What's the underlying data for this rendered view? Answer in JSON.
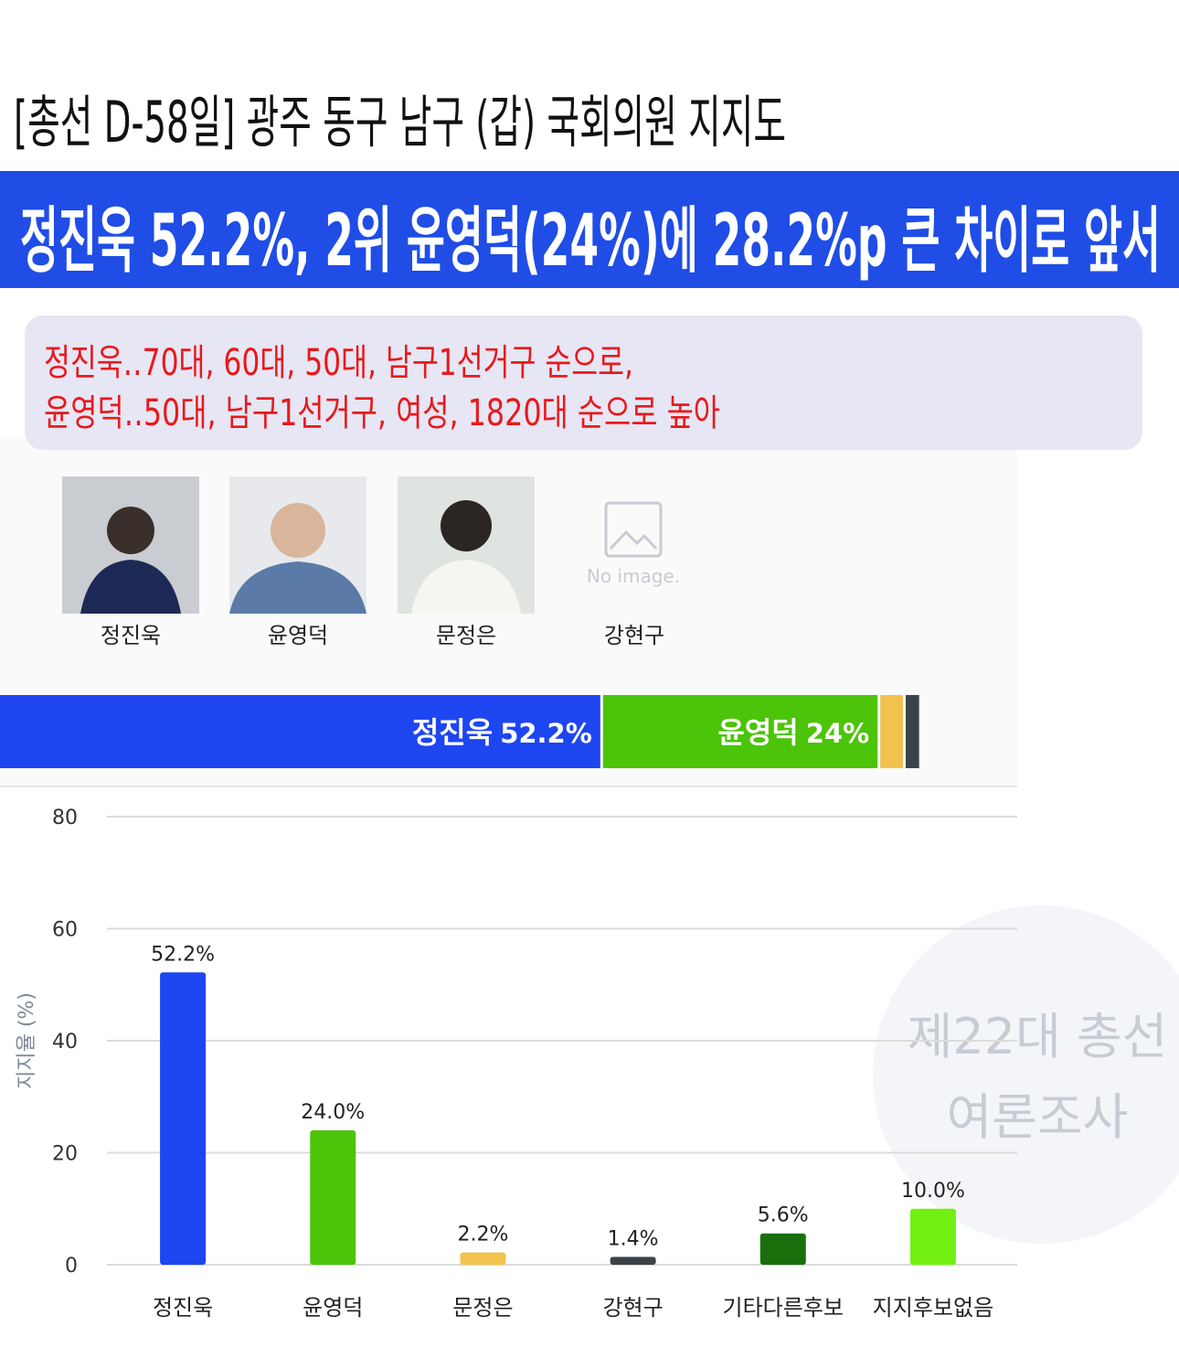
{
  "header": {
    "title": "[총선 D-58일] 광주 동구 남구 (갑) 국회의원 지지도",
    "headline": "정진욱 52.2%, 2위 윤영덕(24%)에 28.2%p 큰 차이로 앞서"
  },
  "summary": {
    "lines": [
      "정진욱‥70대, 60대, 50대, 남구1선거구 순으로,",
      "윤영덕‥50대, 남구1선거구, 여성, 1820대 순으로 높아"
    ]
  },
  "candidates": [
    "정진욱",
    "윤영덕",
    "문정은",
    "강현구"
  ],
  "no_image": "No image.",
  "stacked_bar": {
    "segments": [
      {
        "name": "정진욱",
        "value": 52.2,
        "value_label": "52.2%",
        "color": "#1e46f0"
      },
      {
        "name": "윤영덕",
        "value": 24,
        "value_label": "24%",
        "color": "#4cc40a"
      },
      {
        "value": 2.2,
        "color": "#f2c14e"
      },
      {
        "value": 1.4,
        "color": "#3b4348"
      }
    ]
  },
  "chart_data": {
    "type": "bar",
    "y_label": "지지율 (%)",
    "categories": [
      "정진욱",
      "윤영덕",
      "문정은",
      "강현구",
      "기타다른후보",
      "지지후보없음"
    ],
    "values": [
      52.2,
      24.0,
      2.2,
      1.4,
      5.6,
      10.0
    ],
    "value_labels": [
      "52.2%",
      "24.0%",
      "2.2%",
      "1.4%",
      "5.6%",
      "10.0%"
    ],
    "colors": [
      "#1e46f0",
      "#4cc40a",
      "#f2c14e",
      "#3b4348",
      "#1a6e0c",
      "#73f012"
    ],
    "ylim": [
      0,
      80
    ],
    "yticks": [
      0,
      20,
      40,
      60,
      80
    ],
    "grid": true
  },
  "watermark": [
    "제22대 총선",
    "여론조사"
  ]
}
